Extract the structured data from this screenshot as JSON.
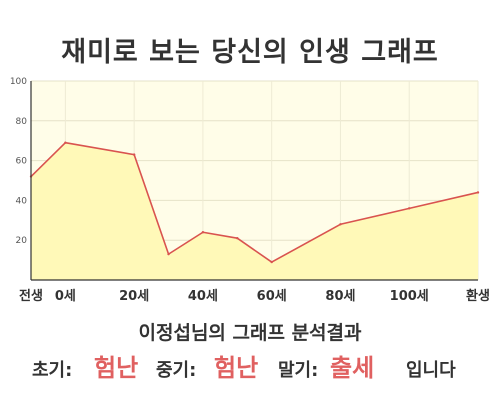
{
  "title": "재미로 보는 당신의 인생 그래프",
  "chart_data": {
    "type": "area",
    "x_tick_labels": [
      "전생",
      "0세",
      "20세",
      "40세",
      "60세",
      "80세",
      "100세",
      "환생"
    ],
    "y_ticks": [
      100,
      80,
      60,
      40,
      20
    ],
    "ylim": [
      0,
      100
    ],
    "points": [
      {
        "x": "전생",
        "y": 52
      },
      {
        "x": "0세",
        "y": 69
      },
      {
        "x": "20세",
        "y": 63
      },
      {
        "x": "30세",
        "y": 13
      },
      {
        "x": "40세",
        "y": 24
      },
      {
        "x": "50세",
        "y": 21
      },
      {
        "x": "60세",
        "y": 9
      },
      {
        "x": "80세",
        "y": 28
      },
      {
        "x": "100세",
        "y": 36
      },
      {
        "x": "환생",
        "y": 44
      }
    ],
    "grid": true,
    "line_color": "#d9534f",
    "fill_color": "#fff9b8"
  },
  "caption": "이정섭님의 그래프 분석결과",
  "verdict": {
    "early_label": "초기:",
    "early_value": "험난",
    "mid_label": "중기:",
    "mid_value": "험난",
    "late_label": "말기:",
    "late_value": "출세",
    "suffix": "입니다"
  },
  "colors": {
    "highlight": "#e06060",
    "plot_background": "#fffde8"
  }
}
